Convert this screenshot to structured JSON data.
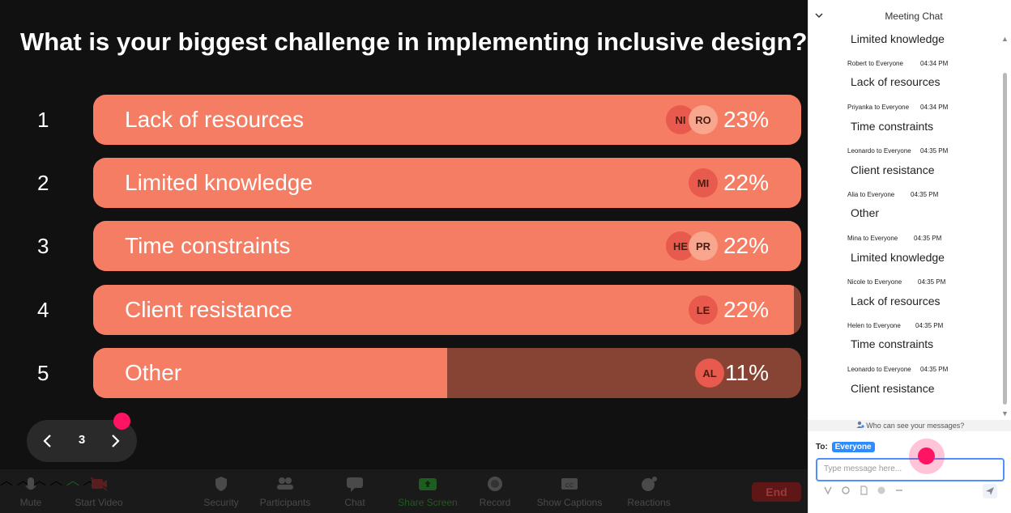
{
  "poll": {
    "question": "What is your biggest challenge in implementing inclusive design?",
    "options": [
      {
        "num": "1",
        "label": "Lack of resources",
        "percent": "23%",
        "fill": 1.0,
        "avatars": [
          "NI",
          "RO"
        ]
      },
      {
        "num": "2",
        "label": "Limited knowledge",
        "percent": "22%",
        "fill": 1.0,
        "avatars": [
          "MI"
        ]
      },
      {
        "num": "3",
        "label": "Time constraints",
        "percent": "22%",
        "fill": 1.0,
        "avatars": [
          "HE",
          "PR"
        ]
      },
      {
        "num": "4",
        "label": "Client resistance",
        "percent": "22%",
        "fill": 0.99,
        "avatars": [
          "LE"
        ]
      },
      {
        "num": "5",
        "label": "Other",
        "percent": "11%",
        "fill": 0.5,
        "avatars": [
          "AL"
        ]
      }
    ]
  },
  "navigator": {
    "prev_icon": "chevron-left-icon",
    "page": "3",
    "next_icon": "chevron-right-icon"
  },
  "toolbar": {
    "mute": "Mute",
    "start_video": "Start Video",
    "security": "Security",
    "participants": "Participants",
    "chat": "Chat",
    "share_screen": "Share Screen",
    "record": "Record",
    "show_captions": "Show Captions",
    "reactions": "Reactions",
    "end": "End"
  },
  "chat": {
    "title": "Meeting Chat",
    "first_text": "Limited knowledge",
    "messages": [
      {
        "sender": "Robert to Everyone",
        "time": "04:34 PM",
        "text": "Lack of resources"
      },
      {
        "sender": "Priyanka to Everyone",
        "time": "04:34 PM",
        "text": "Time constraints"
      },
      {
        "sender": "Leonardo to Everyone",
        "time": "04:35 PM",
        "text": "Client resistance"
      },
      {
        "sender": "Alia to Everyone",
        "time": "04:35 PM",
        "text": "Other"
      },
      {
        "sender": "Mina to Everyone",
        "time": "04:35 PM",
        "text": "Limited knowledge"
      },
      {
        "sender": "Nicole to Everyone",
        "time": "04:35 PM",
        "text": "Lack of resources"
      },
      {
        "sender": "Helen to Everyone",
        "time": "04:35 PM",
        "text": "Time constraints"
      },
      {
        "sender": "Leonardo to Everyone",
        "time": "04:35 PM",
        "text": "Client resistance"
      }
    ],
    "who_can_see": "Who can see your messages?",
    "to_label": "To:",
    "recipient": "Everyone",
    "input_placeholder": "Type message here..."
  },
  "colors": {
    "bar_fill": "#f57d63",
    "bar_track": "#874434",
    "pointer": "#ff1464",
    "accent": "#2d8cff"
  }
}
